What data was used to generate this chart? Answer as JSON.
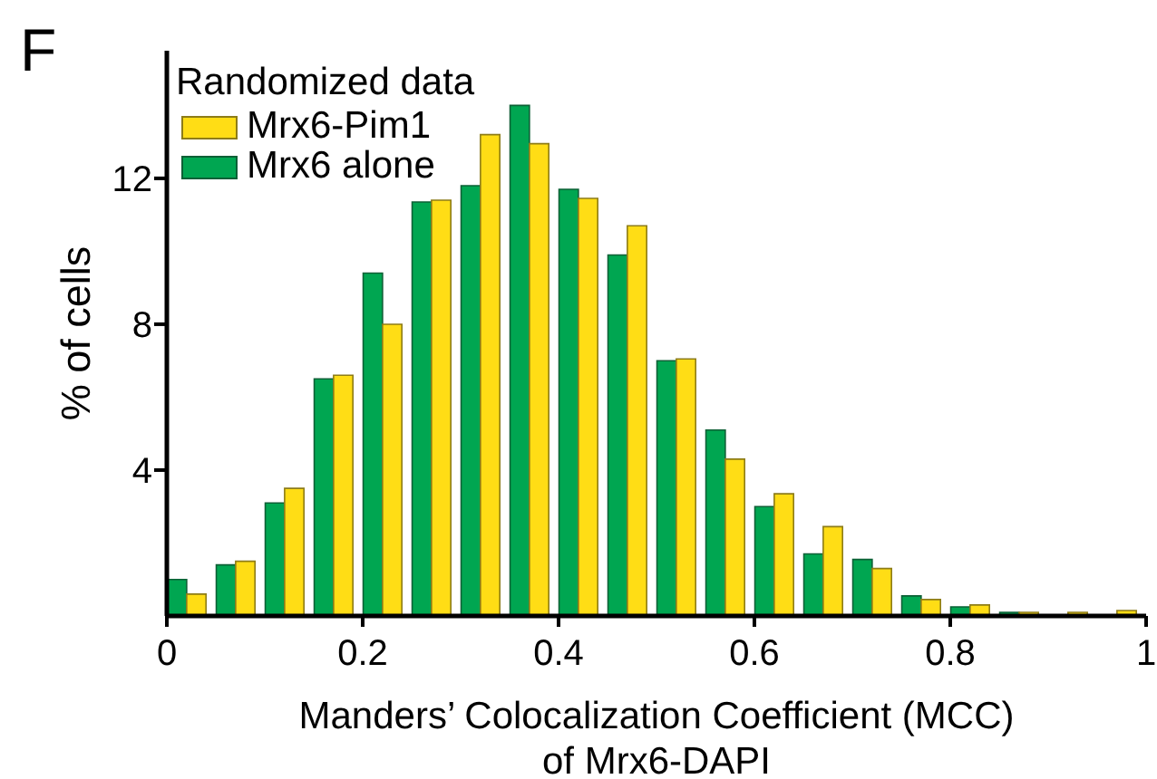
{
  "chart_data": {
    "type": "histogram",
    "title": "F",
    "xlabel": "Manders’ Colocalization Coefficient (MCC)\nof Mrx6-DAPI",
    "ylabel": "% of cells",
    "legend_title": "Randomized data",
    "bins": [
      0,
      0.05,
      0.1,
      0.15,
      0.2,
      0.25,
      0.3,
      0.35,
      0.4,
      0.45,
      0.5,
      0.55,
      0.6,
      0.65,
      0.7,
      0.75,
      0.8,
      0.85,
      0.9,
      0.95,
      1
    ],
    "series": [
      {
        "name": "Mrx6-Pim1",
        "color": "#ffdd15",
        "values": [
          0.6,
          1.5,
          3.5,
          6.6,
          8.0,
          11.4,
          13.2,
          12.95,
          11.45,
          10.7,
          7.05,
          4.3,
          3.35,
          2.45,
          1.3,
          0.45,
          0.3,
          0.1,
          0.1,
          0.15
        ]
      },
      {
        "name": "Mrx6 alone",
        "color": "#00a651",
        "values": [
          1.0,
          1.4,
          3.1,
          6.5,
          9.4,
          11.35,
          11.8,
          14.0,
          11.7,
          9.9,
          7.0,
          5.1,
          3.0,
          1.7,
          1.55,
          0.55,
          0.25,
          0.1,
          null,
          null
        ]
      }
    ],
    "xlim": [
      0,
      1
    ],
    "xticks": [
      0,
      0.2,
      0.4,
      0.6,
      0.8,
      1
    ],
    "ylim": [
      0,
      15.5
    ],
    "yticks": [
      4,
      8,
      12
    ],
    "legend": "top left"
  }
}
